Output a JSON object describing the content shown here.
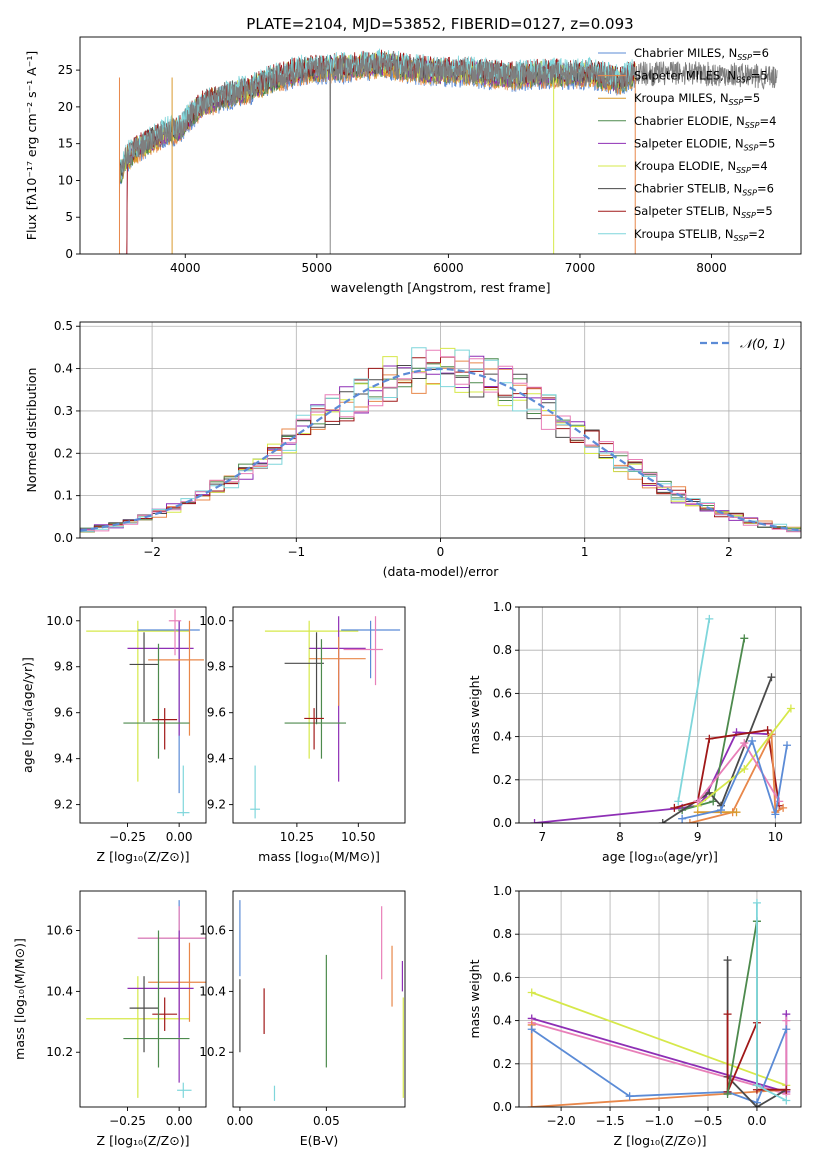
{
  "title": "PLATE=2104, MJD=53852, FIBERID=0127, z=0.093",
  "colors": {
    "chab_miles": "#5b8bd6",
    "salp_miles": "#e8874a",
    "krou_miles": "#d99a2f",
    "chab_elodie": "#4d8a4d",
    "salp_elodie": "#8e2fb5",
    "krou_elodie": "#d6e84a",
    "chab_stelib": "#4a4a4a",
    "salp_stelib": "#a01818",
    "krou_stelib": "#7fd6db",
    "pink": "#e87fb8",
    "spec_grey": "#7f7f7f"
  },
  "chart_data": [
    {
      "id": "spectrum",
      "type": "line",
      "xlabel": "wavelength [Angstrom, rest frame]",
      "ylabel": "Flux [fλ10⁻¹⁷ erg cm⁻² s⁻¹ A⁻¹]",
      "xlim": [
        3200,
        8680
      ],
      "ylim": [
        0,
        29.5
      ],
      "xticks": [
        "4000",
        "5000",
        "6000",
        "7000",
        "8000"
      ],
      "yticks": [
        "0",
        "5",
        "10",
        "15",
        "20",
        "25"
      ],
      "grid": false,
      "legend_position": "upper right",
      "spectrum_shape": {
        "x": [
          3500,
          3550,
          3650,
          3750,
          3850,
          3950,
          4050,
          4150,
          4300,
          4500,
          4700,
          4900,
          5100,
          5300,
          5500,
          5700,
          5900,
          6100,
          6300,
          6500,
          6700,
          6900,
          7100,
          7300,
          7420
        ],
        "y": [
          10.5,
          13,
          14.5,
          15.5,
          16.5,
          17,
          19,
          20.5,
          21.5,
          22.5,
          24,
          25,
          25.2,
          25.5,
          25.8,
          25.2,
          24.8,
          24.8,
          24.5,
          24.2,
          24.5,
          24.5,
          24.5,
          23.5,
          24.5
        ]
      },
      "extended_grey": {
        "x": [
          7420,
          7550,
          7700,
          7850,
          8000,
          8150,
          8300,
          8450,
          8500
        ],
        "y": [
          24.6,
          24.5,
          24.6,
          24.7,
          24.4,
          24.5,
          24.2,
          24.0,
          23.6
        ]
      },
      "drops": [
        3500,
        3900,
        5100,
        6800,
        7420
      ],
      "series": [
        {
          "name": "Chabrier MILES, N",
          "sub": "SSP",
          "suffix": "=6",
          "color": "chab_miles"
        },
        {
          "name": "Salpeter MILES, N",
          "sub": "SSP",
          "suffix": "=5",
          "color": "salp_miles"
        },
        {
          "name": "Kroupa MILES, N",
          "sub": "SSP",
          "suffix": "=5",
          "color": "krou_miles"
        },
        {
          "name": "Chabrier ELODIE, N",
          "sub": "SSP",
          "suffix": "=4",
          "color": "chab_elodie"
        },
        {
          "name": "Salpeter ELODIE, N",
          "sub": "SSP",
          "suffix": "=5",
          "color": "salp_elodie"
        },
        {
          "name": "Kroupa ELODIE, N",
          "sub": "SSP",
          "suffix": "=4",
          "color": "krou_elodie"
        },
        {
          "name": "Chabrier STELIB, N",
          "sub": "SSP",
          "suffix": "=6",
          "color": "chab_stelib"
        },
        {
          "name": "Salpeter STELIB, N",
          "sub": "SSP",
          "suffix": "=5",
          "color": "salp_stelib"
        },
        {
          "name": "Kroupa STELIB, N",
          "sub": "SSP",
          "suffix": "=2",
          "color": "krou_stelib"
        }
      ]
    },
    {
      "id": "residuals",
      "type": "histogram",
      "xlabel": "(data-model)/error",
      "ylabel": "Normed distribution",
      "xlim": [
        -2.5,
        2.5
      ],
      "ylim": [
        0,
        0.51
      ],
      "xticks": [
        -2,
        -1,
        0,
        1,
        2
      ],
      "yticks": [
        0.0,
        0.1,
        0.2,
        0.3,
        0.4,
        0.5
      ],
      "grid": true,
      "legend": "𝒩(0, 1)",
      "legend_position": "upper right",
      "bin_width": 0.1,
      "hist_series": [
        "salp_miles",
        "chab_elodie",
        "salp_elodie",
        "krou_elodie",
        "chab_stelib",
        "salp_stelib",
        "krou_stelib",
        "pink"
      ]
    },
    {
      "id": "age_vs_Z",
      "type": "errorbar",
      "xlabel": "Z [log₁₀(Z/Z⊙)]",
      "ylabel": "age  [log₁₀(age/yr)]",
      "xlim": [
        -0.48,
        0.13
      ],
      "ylim": [
        9.12,
        10.06
      ],
      "xticks": [
        -0.25,
        0.0
      ],
      "yticks": [
        9.2,
        9.4,
        9.6,
        9.8,
        10.0
      ],
      "points": [
        {
          "c": "krou_elodie",
          "x": -0.2,
          "xe": [
            -0.45,
            0.05
          ],
          "y": 9.955,
          "ye": [
            9.3,
            10.0
          ]
        },
        {
          "c": "chab_miles",
          "x": 0.0,
          "xe": [
            -0.2,
            0.1
          ],
          "y": 9.96,
          "ye": [
            9.25,
            10.0
          ]
        },
        {
          "c": "salp_elodie",
          "x": 0.0,
          "xe": [
            -0.25,
            0.07
          ],
          "y": 9.88,
          "ye": [
            9.5,
            10.0
          ]
        },
        {
          "c": "salp_miles",
          "x": 0.05,
          "xe": [
            -0.15,
            0.12
          ],
          "y": 9.83,
          "ye": [
            9.5,
            10.0
          ]
        },
        {
          "c": "chab_stelib",
          "x": -0.17,
          "xe": [
            -0.24,
            -0.1
          ],
          "y": 9.81,
          "ye": [
            9.56,
            9.95
          ]
        },
        {
          "c": "chab_elodie",
          "x": -0.1,
          "xe": [
            -0.27,
            0.05
          ],
          "y": 9.555,
          "ye": [
            9.4,
            9.9
          ]
        },
        {
          "c": "salp_stelib",
          "x": -0.07,
          "xe": [
            -0.13,
            -0.01
          ],
          "y": 9.57,
          "ye": [
            9.44,
            9.62
          ]
        },
        {
          "c": "pink",
          "x": -0.02,
          "xe": [
            -0.05,
            0.01
          ],
          "y": 10.0,
          "ye": [
            9.85,
            10.05
          ]
        },
        {
          "c": "krou_stelib",
          "x": 0.02,
          "xe": [
            -0.01,
            0.05
          ],
          "y": 9.165,
          "ye": [
            9.15,
            9.37
          ]
        }
      ]
    },
    {
      "id": "age_vs_mass",
      "type": "errorbar",
      "xlabel": "mass [log₁₀(M/M⊙)]",
      "ylabel": "",
      "xlim": [
        9.99,
        10.69
      ],
      "ylim": [
        9.12,
        10.06
      ],
      "xticks": [
        10.25,
        10.5
      ],
      "yticks": [
        9.2,
        9.4,
        9.6,
        9.8,
        10.0
      ],
      "points": [
        {
          "c": "krou_elodie",
          "x": 10.3,
          "xe": [
            10.12,
            10.5
          ],
          "y": 9.955,
          "ye": [
            9.4,
            10.0
          ]
        },
        {
          "c": "chab_miles",
          "x": 10.55,
          "xe": [
            10.43,
            10.67
          ],
          "y": 9.96,
          "ye": [
            9.75,
            10.0
          ]
        },
        {
          "c": "salp_elodie",
          "x": 10.42,
          "xe": [
            10.3,
            10.53
          ],
          "y": 9.88,
          "ye": [
            9.3,
            10.02
          ]
        },
        {
          "c": "salp_miles",
          "x": 10.42,
          "xe": [
            10.3,
            10.53
          ],
          "y": 9.835,
          "ye": [
            9.63,
            9.93
          ]
        },
        {
          "c": "pink",
          "x": 10.57,
          "xe": [
            10.44,
            10.6
          ],
          "y": 9.875,
          "ye": [
            9.72,
            10.02
          ]
        },
        {
          "c": "chab_stelib",
          "x": 10.33,
          "xe": [
            10.2,
            10.36
          ],
          "y": 9.815,
          "ye": [
            9.55,
            9.95
          ]
        },
        {
          "c": "chab_elodie",
          "x": 10.35,
          "xe": [
            10.2,
            10.45
          ],
          "y": 9.555,
          "ye": [
            9.4,
            9.92
          ]
        },
        {
          "c": "salp_stelib",
          "x": 10.32,
          "xe": [
            10.28,
            10.36
          ],
          "y": 9.575,
          "ye": [
            9.44,
            9.62
          ]
        },
        {
          "c": "krou_stelib",
          "x": 10.08,
          "xe": [
            10.06,
            10.1
          ],
          "y": 9.18,
          "ye": [
            9.14,
            9.37
          ]
        }
      ]
    },
    {
      "id": "mass_weight_vs_age",
      "type": "line",
      "xlabel": "age  [log₁₀(age/yr)]",
      "ylabel": "mass weight",
      "xlim": [
        6.7,
        10.33
      ],
      "ylim": [
        0,
        1.0
      ],
      "xticks": [
        7,
        8,
        9,
        10
      ],
      "yticks": [
        0.0,
        0.2,
        0.4,
        0.6,
        0.8,
        1.0
      ],
      "grid": true,
      "lines": [
        {
          "c": "salp_elodie",
          "x": [
            6.9,
            8.8,
            9.0,
            9.1,
            9.5,
            9.95
          ],
          "y": [
            0.0,
            0.07,
            0.08,
            0.12,
            0.42,
            0.41
          ]
        },
        {
          "c": "krou_stelib",
          "x": [
            8.75,
            9.15
          ],
          "y": [
            0.1,
            0.945
          ]
        },
        {
          "c": "chab_elodie",
          "x": [
            8.8,
            9.2,
            9.6
          ],
          "y": [
            0.06,
            0.1,
            0.855
          ]
        },
        {
          "c": "chab_stelib",
          "x": [
            8.55,
            9.15,
            9.3,
            9.95
          ],
          "y": [
            0.0,
            0.14,
            0.08,
            0.675
          ]
        },
        {
          "c": "salp_stelib",
          "x": [
            8.7,
            9.0,
            9.15,
            9.9,
            10.05
          ],
          "y": [
            0.07,
            0.1,
            0.39,
            0.43,
            0.08
          ]
        },
        {
          "c": "salp_miles",
          "x": [
            8.9,
            9.45,
            9.95,
            10.0,
            10.1
          ],
          "y": [
            0.0,
            0.05,
            0.41,
            0.05,
            0.07
          ]
        },
        {
          "c": "krou_miles",
          "x": [
            9.0,
            9.5
          ],
          "y": [
            0.05,
            0.05
          ]
        },
        {
          "c": "krou_elodie",
          "x": [
            9.0,
            9.6,
            10.2
          ],
          "y": [
            0.08,
            0.25,
            0.53
          ]
        },
        {
          "c": "pink",
          "x": [
            9.0,
            9.6,
            10.05
          ],
          "y": [
            0.1,
            0.37,
            0.1
          ]
        },
        {
          "c": "chab_miles",
          "x": [
            8.8,
            9.3,
            9.7,
            10.0,
            10.15
          ],
          "y": [
            0.02,
            0.06,
            0.38,
            0.04,
            0.36
          ]
        }
      ]
    },
    {
      "id": "mass_vs_Z",
      "type": "errorbar",
      "xlabel": "Z [log₁₀(Z/Z⊙)]",
      "ylabel": "mass [log₁₀(M/M⊙)]",
      "xlim": [
        -0.48,
        0.13
      ],
      "ylim": [
        10.02,
        10.73
      ],
      "xticks": [
        -0.25,
        0.0
      ],
      "yticks": [
        10.2,
        10.4,
        10.6
      ],
      "points": [
        {
          "c": "krou_elodie",
          "x": -0.2,
          "xe": [
            -0.45,
            0.05
          ],
          "y": 10.31,
          "ye": [
            10.05,
            10.45
          ]
        },
        {
          "c": "chab_miles",
          "x": 0.0,
          "xe": [
            -0.2,
            0.12
          ],
          "y": 10.575,
          "ye": [
            10.25,
            10.7
          ]
        },
        {
          "c": "pink",
          "x": 0.0,
          "xe": [
            -0.2,
            0.13
          ],
          "y": 10.575,
          "ye": [
            10.3,
            10.68
          ]
        },
        {
          "c": "salp_miles",
          "x": 0.05,
          "xe": [
            -0.15,
            0.13
          ],
          "y": 10.43,
          "ye": [
            10.3,
            10.56
          ]
        },
        {
          "c": "salp_elodie",
          "x": 0.0,
          "xe": [
            -0.25,
            0.07
          ],
          "y": 10.41,
          "ye": [
            10.1,
            10.6
          ]
        },
        {
          "c": "chab_stelib",
          "x": -0.17,
          "xe": [
            -0.24,
            -0.1
          ],
          "y": 10.345,
          "ye": [
            10.2,
            10.45
          ]
        },
        {
          "c": "salp_stelib",
          "x": -0.07,
          "xe": [
            -0.13,
            -0.01
          ],
          "y": 10.325,
          "ye": [
            10.27,
            10.38
          ]
        },
        {
          "c": "chab_elodie",
          "x": -0.1,
          "xe": [
            -0.27,
            0.05
          ],
          "y": 10.245,
          "ye": [
            10.15,
            10.6
          ]
        },
        {
          "c": "krou_stelib",
          "x": 0.02,
          "xe": [
            -0.01,
            0.06
          ],
          "y": 10.075,
          "ye": [
            10.05,
            10.1
          ]
        }
      ]
    },
    {
      "id": "mass_vs_EBV",
      "type": "errorbar",
      "xlabel": "E(B-V)",
      "ylabel": "",
      "xlim": [
        -0.004,
        0.0955
      ],
      "ylim": [
        10.02,
        10.73
      ],
      "xticks": [
        0.0,
        0.05
      ],
      "yticks": [
        10.2,
        10.4,
        10.6
      ],
      "points": [
        {
          "c": "chab_miles",
          "x": 0.0,
          "ye": [
            10.45,
            10.7
          ]
        },
        {
          "c": "chab_stelib",
          "x": 0.0,
          "ye": [
            10.2,
            10.44
          ]
        },
        {
          "c": "salp_stelib",
          "x": 0.014,
          "ye": [
            10.26,
            10.41
          ]
        },
        {
          "c": "krou_stelib",
          "x": 0.02,
          "ye": [
            10.04,
            10.09
          ]
        },
        {
          "c": "chab_elodie",
          "x": 0.05,
          "ye": [
            10.15,
            10.52
          ]
        },
        {
          "c": "pink",
          "x": 0.082,
          "ye": [
            10.44,
            10.68
          ]
        },
        {
          "c": "salp_miles",
          "x": 0.088,
          "ye": [
            10.35,
            10.55
          ]
        },
        {
          "c": "salp_elodie",
          "x": 0.094,
          "ye": [
            10.4,
            10.5
          ]
        },
        {
          "c": "krou_elodie",
          "x": 0.0945,
          "ye": [
            10.05,
            10.38
          ]
        }
      ]
    },
    {
      "id": "mass_weight_vs_Z",
      "type": "line",
      "xlabel": "Z [log₁₀(Z/Z⊙)]",
      "ylabel": "mass weight",
      "xlim": [
        -2.43,
        0.45
      ],
      "ylim": [
        0,
        1.0
      ],
      "xticks": [
        -2.0,
        -1.5,
        -1.0,
        -0.5,
        0.0
      ],
      "yticks": [
        0.0,
        0.2,
        0.4,
        0.6,
        0.8,
        1.0
      ],
      "grid": true,
      "lines": [
        {
          "c": "krou_elodie",
          "x": [
            -2.3,
            0.3
          ],
          "y": [
            0.53,
            0.1
          ]
        },
        {
          "c": "salp_elodie",
          "x": [
            -2.3,
            0.3,
            0.3,
            0.3
          ],
          "y": [
            0.41,
            0.07,
            0.43,
            0.08
          ]
        },
        {
          "c": "pink",
          "x": [
            -2.3,
            0.3,
            0.3
          ],
          "y": [
            0.39,
            0.06,
            0.4
          ]
        },
        {
          "c": "salp_miles",
          "x": [
            -2.3,
            -2.3,
            0.3
          ],
          "y": [
            0.38,
            0.0,
            0.08
          ]
        },
        {
          "c": "chab_miles",
          "x": [
            -2.3,
            -1.3,
            -0.3,
            0.0,
            0.3
          ],
          "y": [
            0.36,
            0.05,
            0.07,
            0.02,
            0.36
          ]
        },
        {
          "c": "chab_stelib",
          "x": [
            -0.3,
            -0.3,
            0.0,
            0.3
          ],
          "y": [
            0.68,
            0.14,
            0.0,
            0.08
          ]
        },
        {
          "c": "salp_stelib",
          "x": [
            -0.3,
            -0.3,
            0.0,
            0.0,
            0.3
          ],
          "y": [
            0.43,
            0.07,
            0.39,
            0.08,
            0.08
          ]
        },
        {
          "c": "chab_elodie",
          "x": [
            -0.3,
            0.0,
            0.0,
            0.0
          ],
          "y": [
            0.06,
            0.86,
            0.86,
            0.1
          ]
        },
        {
          "c": "krou_stelib",
          "x": [
            0.0,
            0.0,
            0.3
          ],
          "y": [
            0.945,
            0.1,
            0.03
          ]
        }
      ]
    }
  ]
}
